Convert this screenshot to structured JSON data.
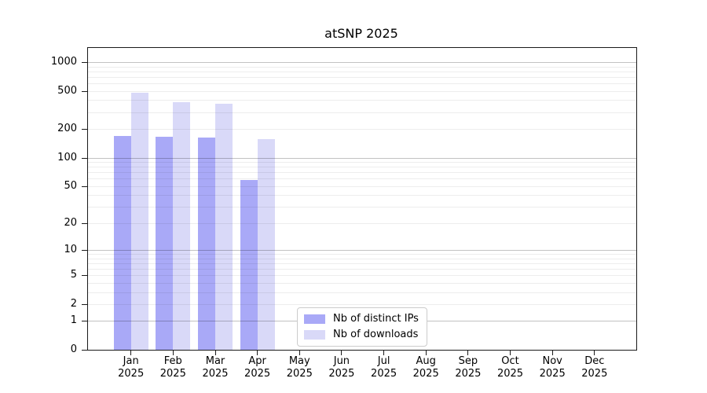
{
  "chart_data": {
    "type": "bar",
    "title": "atSNP 2025",
    "categories": [
      "Jan",
      "Feb",
      "Mar",
      "Apr",
      "May",
      "Jun",
      "Jul",
      "Aug",
      "Sep",
      "Oct",
      "Nov",
      "Dec"
    ],
    "year_label": "2025",
    "series": [
      {
        "name": "Nb of distinct IPs",
        "color": "#a9a9f7",
        "values": [
          168,
          165,
          164,
          58,
          0,
          0,
          0,
          0,
          0,
          0,
          0,
          0
        ]
      },
      {
        "name": "Nb of downloads",
        "color": "#d9d9f8",
        "values": [
          482,
          380,
          369,
          157,
          0,
          0,
          0,
          0,
          0,
          0,
          0,
          0
        ]
      }
    ],
    "yscale": "log10(value+1)",
    "ylim": [
      0,
      1380
    ],
    "yticks": [
      0,
      1,
      2,
      5,
      10,
      20,
      50,
      100,
      200,
      500,
      1000
    ],
    "major_gridlines": [
      1,
      10,
      100,
      1000
    ],
    "minor_gridlines": [
      2,
      3,
      4,
      5,
      6,
      7,
      8,
      9,
      20,
      30,
      40,
      50,
      60,
      70,
      80,
      90,
      200,
      300,
      400,
      500,
      600,
      700,
      800,
      900
    ],
    "grid": true,
    "legend_position": "lower center"
  }
}
